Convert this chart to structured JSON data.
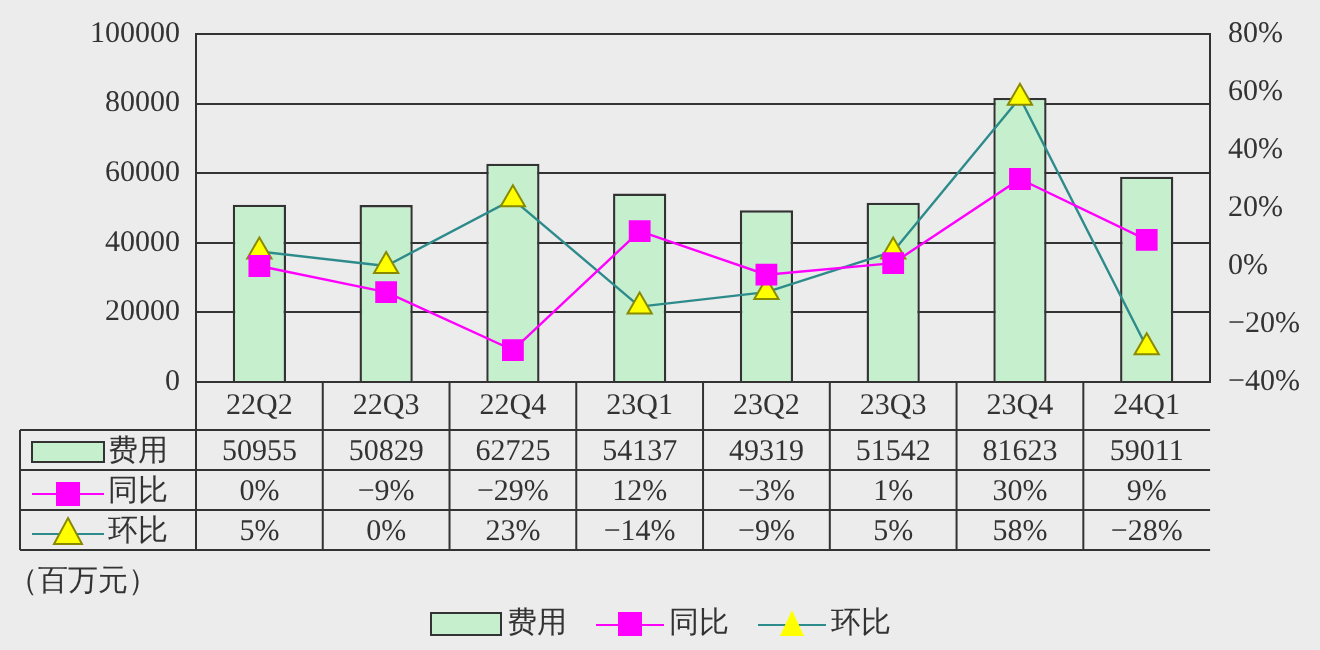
{
  "chart_data": {
    "type": "bar",
    "ylabel": "（百万元）",
    "categories": [
      "22Q2",
      "22Q3",
      "22Q4",
      "23Q1",
      "23Q2",
      "23Q3",
      "23Q4",
      "24Q1"
    ],
    "series": [
      {
        "name": "费用",
        "color": "#c6efce",
        "values": [
          50955,
          50829,
          62725,
          54137,
          49319,
          51542,
          81623,
          59011
        ],
        "value_labels": [
          "50955",
          "50829",
          "62725",
          "54137",
          "49319",
          "51542",
          "81623",
          "59011"
        ]
      },
      {
        "name": "同比",
        "type": "line",
        "axis": "y2",
        "marker": "square",
        "color": "#ff00ff",
        "values": [
          0,
          -9,
          -29,
          12,
          -3,
          1,
          30,
          9
        ],
        "value_labels": [
          "0%",
          "−9%",
          "−29%",
          "12%",
          "−3%",
          "1%",
          "30%",
          "9%"
        ]
      },
      {
        "name": "环比",
        "type": "line",
        "axis": "y2",
        "marker": "triangle",
        "color": "#2e8b8b",
        "values": [
          5,
          0,
          23,
          -14,
          -9,
          5,
          58,
          -28
        ],
        "value_labels": [
          "5%",
          "0%",
          "23%",
          "−14%",
          "−9%",
          "5%",
          "58%",
          "−28%"
        ]
      }
    ],
    "ylim": [
      0,
      100000
    ],
    "yticks": [
      0,
      20000,
      40000,
      60000,
      80000,
      100000
    ],
    "y2lim": [
      -40,
      80
    ],
    "y2ticks": [
      {
        "value": -40,
        "label": "−40%"
      },
      {
        "value": -20,
        "label": "−20%"
      },
      {
        "value": 0,
        "label": "0%"
      },
      {
        "value": 20,
        "label": "20%"
      },
      {
        "value": 40,
        "label": "40%"
      },
      {
        "value": 60,
        "label": "60%"
      },
      {
        "value": 80,
        "label": "80%"
      }
    ],
    "grid": "y",
    "legend": "bottom",
    "line_style": "solid"
  }
}
